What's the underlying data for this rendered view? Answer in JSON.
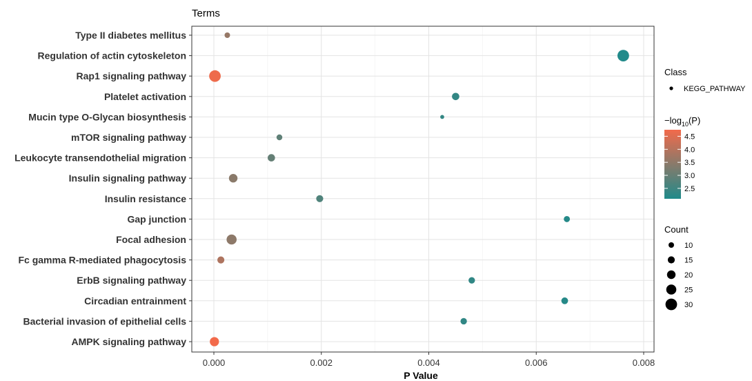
{
  "chart_data": {
    "type": "scatter",
    "title": "Terms",
    "xlabel": "P Value",
    "ylabel": "",
    "xlim": [
      -0.0005,
      0.008
    ],
    "x_ticks": [
      "0.000",
      "0.002",
      "0.004",
      "0.006",
      "0.008"
    ],
    "x_tick_values": [
      0,
      0.002,
      0.004,
      0.006,
      0.008
    ],
    "grid": true,
    "legend_position": "right",
    "color_low": "#1f8a8a",
    "color_high": "#f26a4b",
    "terms": [
      {
        "term": "Type II diabetes mellitus",
        "p": 0.00025,
        "count": 10,
        "neglog10p": 3.6
      },
      {
        "term": "Regulation of actin cytoskeleton",
        "p": 0.00762,
        "count": 30,
        "neglog10p": 2.12
      },
      {
        "term": "Rap1 signaling pathway",
        "p": 2e-05,
        "count": 30,
        "neglog10p": 4.7
      },
      {
        "term": "Platelet activation",
        "p": 0.0045,
        "count": 16,
        "neglog10p": 2.35
      },
      {
        "term": "Mucin type O-Glycan biosynthesis",
        "p": 0.00425,
        "count": 5,
        "neglog10p": 2.37
      },
      {
        "term": "mTOR signaling pathway",
        "p": 0.00122,
        "count": 11,
        "neglog10p": 2.91
      },
      {
        "term": "Leukocyte transendothelial migration",
        "p": 0.00107,
        "count": 16,
        "neglog10p": 2.97
      },
      {
        "term": "Insulin signaling pathway",
        "p": 0.00036,
        "count": 20,
        "neglog10p": 3.44
      },
      {
        "term": "Insulin resistance",
        "p": 0.00197,
        "count": 15,
        "neglog10p": 2.71
      },
      {
        "term": "Gap junction",
        "p": 0.00657,
        "count": 12,
        "neglog10p": 2.18
      },
      {
        "term": "Focal adhesion",
        "p": 0.00033,
        "count": 25,
        "neglog10p": 3.48
      },
      {
        "term": "Fc gamma R-mediated phagocytosis",
        "p": 0.00013,
        "count": 15,
        "neglog10p": 3.89
      },
      {
        "term": "ErbB signaling pathway",
        "p": 0.0048,
        "count": 13,
        "neglog10p": 2.32
      },
      {
        "term": "Circadian entrainment",
        "p": 0.00653,
        "count": 14,
        "neglog10p": 2.19
      },
      {
        "term": "Bacterial invasion of epithelial cells",
        "p": 0.00465,
        "count": 13,
        "neglog10p": 2.33
      },
      {
        "term": "AMPK signaling pathway",
        "p": 1e-05,
        "count": 22,
        "neglog10p": 5.0
      }
    ],
    "legend": {
      "class_title": "Class",
      "class_items": [
        "KEGG_PATHWAY"
      ],
      "color_title_prefix": "−log",
      "color_title_sub": "10",
      "color_title_suffix": "(P)",
      "color_ticks": [
        "4.5",
        "4.0",
        "3.5",
        "3.0",
        "2.5"
      ],
      "color_tick_values": [
        4.5,
        4.0,
        3.5,
        3.0,
        2.5
      ],
      "color_range": [
        2.1,
        4.75
      ],
      "size_title": "Count",
      "size_ticks": [
        "10",
        "15",
        "20",
        "25",
        "30"
      ],
      "size_tick_values": [
        10,
        15,
        20,
        25,
        30
      ]
    }
  }
}
